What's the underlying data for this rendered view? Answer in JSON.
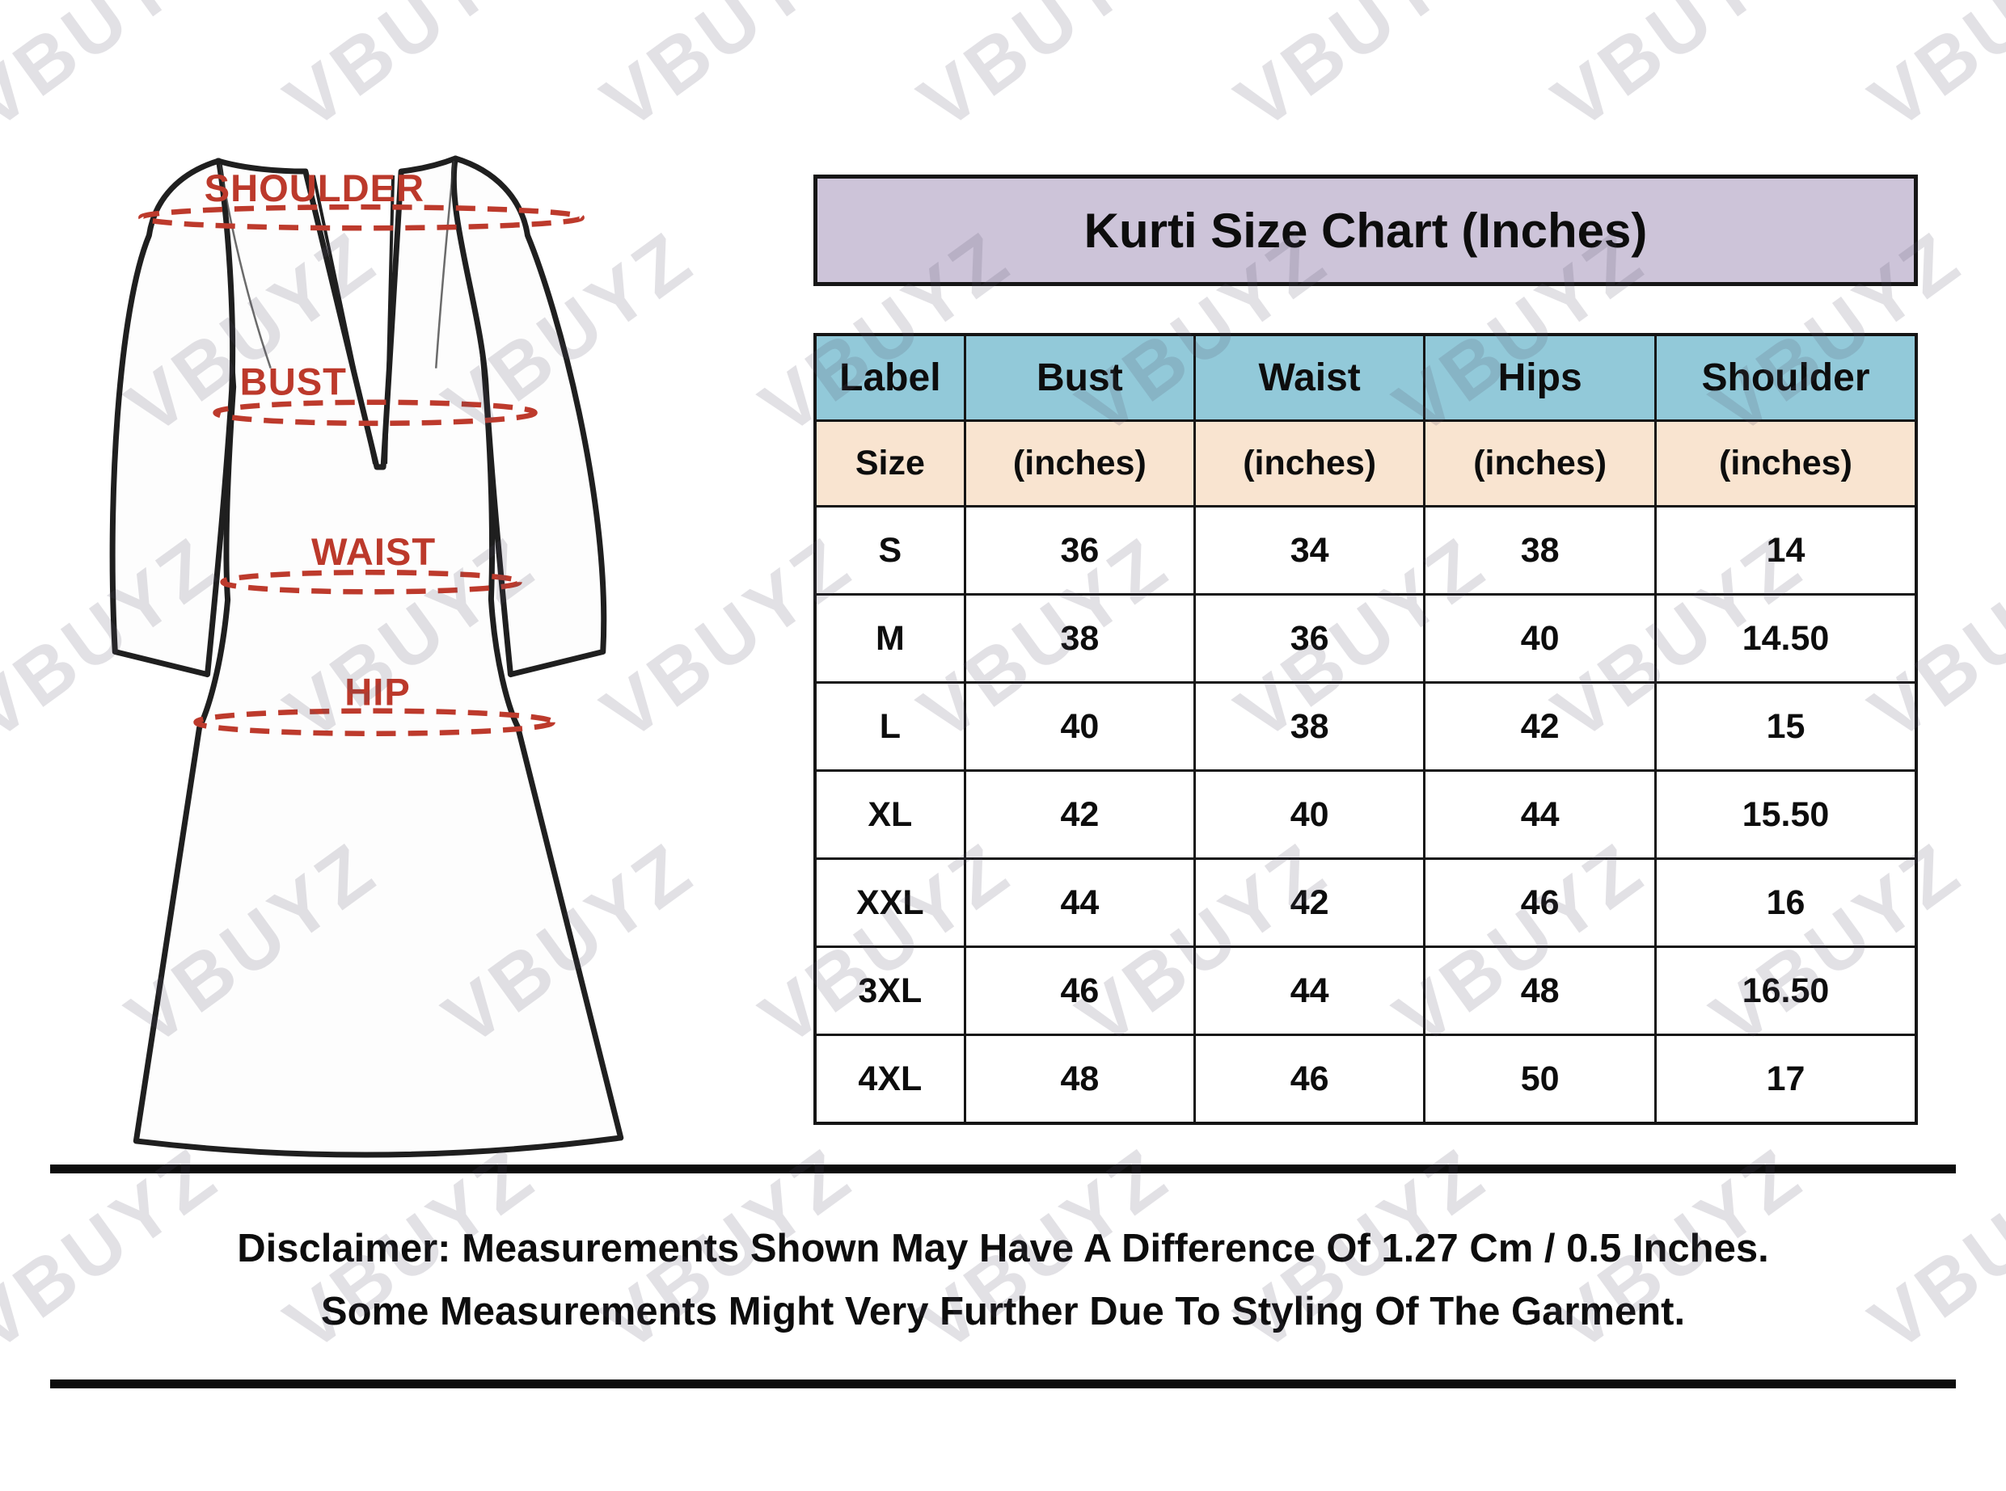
{
  "watermark": {
    "text": "VBUYZ"
  },
  "diagram": {
    "labels": [
      "SHOULDER",
      "BUST",
      "WAIST",
      "HIP"
    ],
    "line_color": "#bd3a2c",
    "label_color": "#bc392b",
    "outline_color": "#1f1f1f"
  },
  "title": {
    "text": "Kurti Size Chart (Inches)",
    "bg": "#cdc4d9"
  },
  "chart_data": {
    "type": "table",
    "title": "Kurti Size Chart (Inches)",
    "columns": [
      "Label",
      "Bust",
      "Waist",
      "Hips",
      "Shoulder"
    ],
    "units_row": [
      "Size",
      "(inches)",
      "(inches)",
      "(inches)",
      "(inches)"
    ],
    "rows": [
      [
        "S",
        "36",
        "34",
        "38",
        "14"
      ],
      [
        "M",
        "38",
        "36",
        "40",
        "14.50"
      ],
      [
        "L",
        "40",
        "38",
        "42",
        "15"
      ],
      [
        "XL",
        "42",
        "40",
        "44",
        "15.50"
      ],
      [
        "XXL",
        "44",
        "42",
        "46",
        "16"
      ],
      [
        "3XL",
        "46",
        "44",
        "48",
        "16.50"
      ],
      [
        "4XL",
        "48",
        "46",
        "50",
        "17"
      ]
    ],
    "header_bg": "#92c9d9",
    "units_bg": "#f9e4d0"
  },
  "disclaimer": {
    "line1": "Disclaimer: Measurements Shown May Have A Difference Of 1.27 Cm / 0.5 Inches.",
    "line2": "Some Measurements Might Very Further Due To Styling Of The Garment."
  }
}
